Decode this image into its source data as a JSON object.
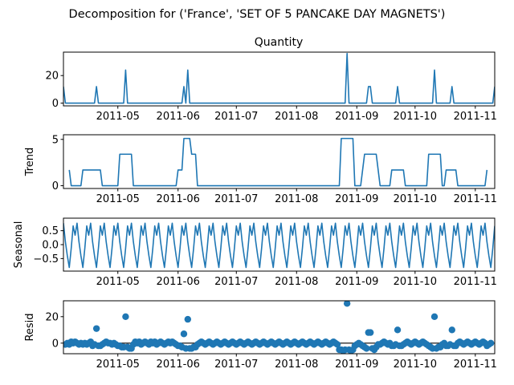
{
  "figure": {
    "suptitle": "Decomposition for ('France', 'SET OF 5 PANCAKE DAY MAGNETS')"
  },
  "chart_data": [
    {
      "type": "line",
      "panel": "observed",
      "title": "Quantity",
      "ylabel": "",
      "xlim": [
        "2011-04-03",
        "2011-11-11"
      ],
      "ylim": [
        -2,
        37
      ],
      "yticks": [
        0,
        20
      ],
      "line_color": "#1f77b4",
      "points": [
        [
          "2011-04-03",
          12
        ],
        [
          "2011-04-04",
          0
        ],
        [
          "2011-04-19",
          0
        ],
        [
          "2011-04-20",
          12
        ],
        [
          "2011-04-21",
          0
        ],
        [
          "2011-05-04",
          0
        ],
        [
          "2011-05-05",
          24
        ],
        [
          "2011-05-06",
          0
        ],
        [
          "2011-06-03",
          0
        ],
        [
          "2011-06-04",
          12
        ],
        [
          "2011-06-05",
          0
        ],
        [
          "2011-06-06",
          24
        ],
        [
          "2011-06-07",
          0
        ],
        [
          "2011-08-26",
          0
        ],
        [
          "2011-08-27",
          36
        ],
        [
          "2011-08-28",
          0
        ],
        [
          "2011-09-06",
          0
        ],
        [
          "2011-09-07",
          12
        ],
        [
          "2011-09-08",
          12
        ],
        [
          "2011-09-09",
          0
        ],
        [
          "2011-09-21",
          0
        ],
        [
          "2011-09-22",
          12
        ],
        [
          "2011-09-23",
          0
        ],
        [
          "2011-10-10",
          0
        ],
        [
          "2011-10-11",
          24
        ],
        [
          "2011-10-12",
          0
        ],
        [
          "2011-10-19",
          0
        ],
        [
          "2011-10-20",
          12
        ],
        [
          "2011-10-21",
          0
        ],
        [
          "2011-11-10",
          0
        ],
        [
          "2011-11-11",
          12
        ]
      ]
    },
    {
      "type": "line",
      "panel": "trend",
      "ylabel": "Trend",
      "xlim": [
        "2011-04-03",
        "2011-11-11"
      ],
      "ylim": [
        -0.3,
        5.5
      ],
      "yticks": [
        0,
        5
      ],
      "line_color": "#1f77b4",
      "points": [
        [
          "2011-04-06",
          1.7
        ],
        [
          "2011-04-07",
          0
        ],
        [
          "2011-04-12",
          0
        ],
        [
          "2011-04-13",
          1.7
        ],
        [
          "2011-04-19",
          1.7
        ],
        [
          "2011-04-20",
          1.7
        ],
        [
          "2011-04-22",
          1.7
        ],
        [
          "2011-04-23",
          0
        ],
        [
          "2011-05-01",
          0
        ],
        [
          "2011-05-02",
          3.4
        ],
        [
          "2011-05-08",
          3.4
        ],
        [
          "2011-05-09",
          0
        ],
        [
          "2011-05-31",
          0
        ],
        [
          "2011-06-01",
          1.7
        ],
        [
          "2011-06-03",
          1.7
        ],
        [
          "2011-06-04",
          5.1
        ],
        [
          "2011-06-07",
          5.1
        ],
        [
          "2011-06-08",
          3.4
        ],
        [
          "2011-06-10",
          3.4
        ],
        [
          "2011-06-11",
          0
        ],
        [
          "2011-08-23",
          0
        ],
        [
          "2011-08-24",
          5.1
        ],
        [
          "2011-08-30",
          5.1
        ],
        [
          "2011-08-31",
          0
        ],
        [
          "2011-09-03",
          0
        ],
        [
          "2011-09-05",
          3.4
        ],
        [
          "2011-09-11",
          3.4
        ],
        [
          "2011-09-13",
          0
        ],
        [
          "2011-09-18",
          0
        ],
        [
          "2011-09-19",
          1.7
        ],
        [
          "2011-09-25",
          1.7
        ],
        [
          "2011-09-26",
          0
        ],
        [
          "2011-10-07",
          0
        ],
        [
          "2011-10-08",
          3.4
        ],
        [
          "2011-10-14",
          3.4
        ],
        [
          "2011-10-15",
          0
        ],
        [
          "2011-10-16",
          0
        ],
        [
          "2011-10-17",
          1.7
        ],
        [
          "2011-10-22",
          1.7
        ],
        [
          "2011-10-23",
          0
        ],
        [
          "2011-11-06",
          0
        ],
        [
          "2011-11-07",
          1.7
        ]
      ]
    },
    {
      "type": "line",
      "panel": "seasonal",
      "ylabel": "Seasonal",
      "xlim": [
        "2011-04-03",
        "2011-11-11"
      ],
      "ylim": [
        -0.95,
        0.95
      ],
      "yticks": [
        0.5,
        0.0,
        -0.5
      ],
      "line_color": "#1f77b4",
      "period_days": 7,
      "period_start": "2011-04-03",
      "pattern": [
        0.77,
        0.1,
        -0.4,
        -0.82,
        -0.13,
        0.67,
        0.34
      ]
    },
    {
      "type": "scatter",
      "panel": "resid",
      "ylabel": "Resid",
      "xlim": [
        "2011-04-03",
        "2011-11-11"
      ],
      "ylim": [
        -8,
        32
      ],
      "yticks": [
        0,
        20
      ],
      "marker_color": "#1f77b4",
      "zero_line": true,
      "points": [
        [
          "2011-04-04",
          -1
        ],
        [
          "2011-04-05",
          0
        ],
        [
          "2011-04-06",
          -1
        ],
        [
          "2011-04-07",
          1
        ],
        [
          "2011-04-08",
          0
        ],
        [
          "2011-04-09",
          1
        ],
        [
          "2011-04-10",
          0
        ],
        [
          "2011-04-11",
          -1
        ],
        [
          "2011-04-12",
          0
        ],
        [
          "2011-04-13",
          -1
        ],
        [
          "2011-04-14",
          0
        ],
        [
          "2011-04-15",
          -1
        ],
        [
          "2011-04-16",
          0
        ],
        [
          "2011-04-17",
          1
        ],
        [
          "2011-04-18",
          -2
        ],
        [
          "2011-04-19",
          -1
        ],
        [
          "2011-04-20",
          11
        ],
        [
          "2011-04-21",
          -2
        ],
        [
          "2011-04-22",
          -2
        ],
        [
          "2011-04-23",
          -1
        ],
        [
          "2011-04-24",
          0
        ],
        [
          "2011-04-25",
          1
        ],
        [
          "2011-04-26",
          0
        ],
        [
          "2011-04-27",
          0
        ],
        [
          "2011-04-28",
          -1
        ],
        [
          "2011-04-29",
          0
        ],
        [
          "2011-04-30",
          -1
        ],
        [
          "2011-05-01",
          -2
        ],
        [
          "2011-05-02",
          -2
        ],
        [
          "2011-05-03",
          -3
        ],
        [
          "2011-05-04",
          -3
        ],
        [
          "2011-05-05",
          20
        ],
        [
          "2011-05-06",
          -3
        ],
        [
          "2011-05-07",
          -4
        ],
        [
          "2011-05-08",
          -4
        ],
        [
          "2011-05-09",
          -1
        ],
        [
          "2011-05-10",
          1
        ],
        [
          "2011-05-11",
          0
        ],
        [
          "2011-05-12",
          1
        ],
        [
          "2011-05-13",
          -1
        ],
        [
          "2011-05-14",
          0
        ],
        [
          "2011-05-15",
          1
        ],
        [
          "2011-05-16",
          0
        ],
        [
          "2011-05-17",
          -1
        ],
        [
          "2011-05-18",
          1
        ],
        [
          "2011-05-19",
          0
        ],
        [
          "2011-05-20",
          1
        ],
        [
          "2011-05-21",
          -1
        ],
        [
          "2011-05-22",
          0
        ],
        [
          "2011-05-23",
          1
        ],
        [
          "2011-05-24",
          0
        ],
        [
          "2011-05-25",
          -1
        ],
        [
          "2011-05-26",
          0
        ],
        [
          "2011-05-27",
          1
        ],
        [
          "2011-05-28",
          0
        ],
        [
          "2011-05-29",
          1
        ],
        [
          "2011-05-30",
          0
        ],
        [
          "2011-05-31",
          -1
        ],
        [
          "2011-06-01",
          -2
        ],
        [
          "2011-06-02",
          -2
        ],
        [
          "2011-06-03",
          -3
        ],
        [
          "2011-06-04",
          7
        ],
        [
          "2011-06-05",
          -4
        ],
        [
          "2011-06-06",
          18
        ],
        [
          "2011-06-07",
          -4
        ],
        [
          "2011-06-08",
          -4
        ],
        [
          "2011-06-09",
          -3
        ],
        [
          "2011-06-10",
          -3
        ],
        [
          "2011-06-11",
          -1
        ],
        [
          "2011-06-12",
          0
        ],
        [
          "2011-06-13",
          1
        ],
        [
          "2011-06-14",
          0
        ],
        [
          "2011-06-15",
          -1
        ],
        [
          "2011-06-16",
          0
        ],
        [
          "2011-06-17",
          1
        ],
        [
          "2011-06-18",
          0
        ],
        [
          "2011-06-19",
          -1
        ],
        [
          "2011-06-20",
          0
        ],
        [
          "2011-06-21",
          1
        ],
        [
          "2011-06-22",
          0
        ],
        [
          "2011-06-23",
          -1
        ],
        [
          "2011-06-24",
          0
        ],
        [
          "2011-06-25",
          1
        ],
        [
          "2011-06-26",
          0
        ],
        [
          "2011-06-27",
          -1
        ],
        [
          "2011-06-28",
          0
        ],
        [
          "2011-06-29",
          1
        ],
        [
          "2011-06-30",
          0
        ],
        [
          "2011-07-01",
          -1
        ],
        [
          "2011-07-02",
          0
        ],
        [
          "2011-07-03",
          1
        ],
        [
          "2011-07-04",
          0
        ],
        [
          "2011-07-05",
          -1
        ],
        [
          "2011-07-06",
          0
        ],
        [
          "2011-07-07",
          1
        ],
        [
          "2011-07-08",
          0
        ],
        [
          "2011-07-09",
          -1
        ],
        [
          "2011-07-10",
          0
        ],
        [
          "2011-07-11",
          1
        ],
        [
          "2011-07-12",
          0
        ],
        [
          "2011-07-13",
          -1
        ],
        [
          "2011-07-14",
          0
        ],
        [
          "2011-07-15",
          1
        ],
        [
          "2011-07-16",
          0
        ],
        [
          "2011-07-17",
          -1
        ],
        [
          "2011-07-18",
          0
        ],
        [
          "2011-07-19",
          1
        ],
        [
          "2011-07-20",
          0
        ],
        [
          "2011-07-21",
          -1
        ],
        [
          "2011-07-22",
          0
        ],
        [
          "2011-07-23",
          1
        ],
        [
          "2011-07-24",
          0
        ],
        [
          "2011-07-25",
          -1
        ],
        [
          "2011-07-26",
          0
        ],
        [
          "2011-07-27",
          1
        ],
        [
          "2011-07-28",
          0
        ],
        [
          "2011-07-29",
          -1
        ],
        [
          "2011-07-30",
          0
        ],
        [
          "2011-07-31",
          1
        ],
        [
          "2011-08-01",
          0
        ],
        [
          "2011-08-02",
          -1
        ],
        [
          "2011-08-03",
          0
        ],
        [
          "2011-08-04",
          1
        ],
        [
          "2011-08-05",
          0
        ],
        [
          "2011-08-06",
          -1
        ],
        [
          "2011-08-07",
          0
        ],
        [
          "2011-08-08",
          1
        ],
        [
          "2011-08-09",
          0
        ],
        [
          "2011-08-10",
          -1
        ],
        [
          "2011-08-11",
          0
        ],
        [
          "2011-08-12",
          1
        ],
        [
          "2011-08-13",
          0
        ],
        [
          "2011-08-14",
          -1
        ],
        [
          "2011-08-15",
          0
        ],
        [
          "2011-08-16",
          1
        ],
        [
          "2011-08-17",
          0
        ],
        [
          "2011-08-18",
          -1
        ],
        [
          "2011-08-19",
          0
        ],
        [
          "2011-08-20",
          1
        ],
        [
          "2011-08-21",
          0
        ],
        [
          "2011-08-22",
          -1
        ],
        [
          "2011-08-23",
          -5
        ],
        [
          "2011-08-24",
          -5
        ],
        [
          "2011-08-25",
          -6
        ],
        [
          "2011-08-26",
          -5
        ],
        [
          "2011-08-27",
          30
        ],
        [
          "2011-08-28",
          -5
        ],
        [
          "2011-08-29",
          -6
        ],
        [
          "2011-08-30",
          -5
        ],
        [
          "2011-08-31",
          -2
        ],
        [
          "2011-09-01",
          -1
        ],
        [
          "2011-09-02",
          0
        ],
        [
          "2011-09-03",
          -1
        ],
        [
          "2011-09-04",
          -2
        ],
        [
          "2011-09-05",
          -3
        ],
        [
          "2011-09-06",
          -4
        ],
        [
          "2011-09-07",
          8
        ],
        [
          "2011-09-08",
          8
        ],
        [
          "2011-09-09",
          -4
        ],
        [
          "2011-09-10",
          -5
        ],
        [
          "2011-09-11",
          -3
        ],
        [
          "2011-09-12",
          -1
        ],
        [
          "2011-09-13",
          -1
        ],
        [
          "2011-09-14",
          0
        ],
        [
          "2011-09-15",
          1
        ],
        [
          "2011-09-16",
          0
        ],
        [
          "2011-09-17",
          -1
        ],
        [
          "2011-09-18",
          0
        ],
        [
          "2011-09-19",
          -2
        ],
        [
          "2011-09-20",
          -2
        ],
        [
          "2011-09-21",
          -1
        ],
        [
          "2011-09-22",
          10
        ],
        [
          "2011-09-23",
          -2
        ],
        [
          "2011-09-24",
          -2
        ],
        [
          "2011-09-25",
          -1
        ],
        [
          "2011-09-26",
          0
        ],
        [
          "2011-09-27",
          1
        ],
        [
          "2011-09-28",
          0
        ],
        [
          "2011-09-29",
          -1
        ],
        [
          "2011-09-30",
          0
        ],
        [
          "2011-10-01",
          1
        ],
        [
          "2011-10-02",
          0
        ],
        [
          "2011-10-03",
          -1
        ],
        [
          "2011-10-04",
          0
        ],
        [
          "2011-10-05",
          1
        ],
        [
          "2011-10-06",
          0
        ],
        [
          "2011-10-07",
          -1
        ],
        [
          "2011-10-08",
          -2
        ],
        [
          "2011-10-09",
          -3
        ],
        [
          "2011-10-10",
          -4
        ],
        [
          "2011-10-11",
          20
        ],
        [
          "2011-10-12",
          -4
        ],
        [
          "2011-10-13",
          -3
        ],
        [
          "2011-10-14",
          -3
        ],
        [
          "2011-10-15",
          -1
        ],
        [
          "2011-10-16",
          0
        ],
        [
          "2011-10-17",
          -2
        ],
        [
          "2011-10-18",
          -2
        ],
        [
          "2011-10-19",
          -1
        ],
        [
          "2011-10-20",
          10
        ],
        [
          "2011-10-21",
          -2
        ],
        [
          "2011-10-22",
          -2
        ],
        [
          "2011-10-23",
          0
        ],
        [
          "2011-10-24",
          1
        ],
        [
          "2011-10-25",
          0
        ],
        [
          "2011-10-26",
          -1
        ],
        [
          "2011-10-27",
          0
        ],
        [
          "2011-10-28",
          1
        ],
        [
          "2011-10-29",
          0
        ],
        [
          "2011-10-30",
          -1
        ],
        [
          "2011-10-31",
          0
        ],
        [
          "2011-11-01",
          1
        ],
        [
          "2011-11-02",
          0
        ],
        [
          "2011-11-03",
          -1
        ],
        [
          "2011-11-04",
          0
        ],
        [
          "2011-11-05",
          1
        ],
        [
          "2011-11-06",
          0
        ],
        [
          "2011-11-07",
          -2
        ],
        [
          "2011-11-08",
          -1
        ],
        [
          "2011-11-09",
          0
        ]
      ]
    }
  ],
  "x_tick_labels": [
    "2011-05",
    "2011-06",
    "2011-07",
    "2011-08",
    "2011-09",
    "2011-10",
    "2011-11"
  ]
}
